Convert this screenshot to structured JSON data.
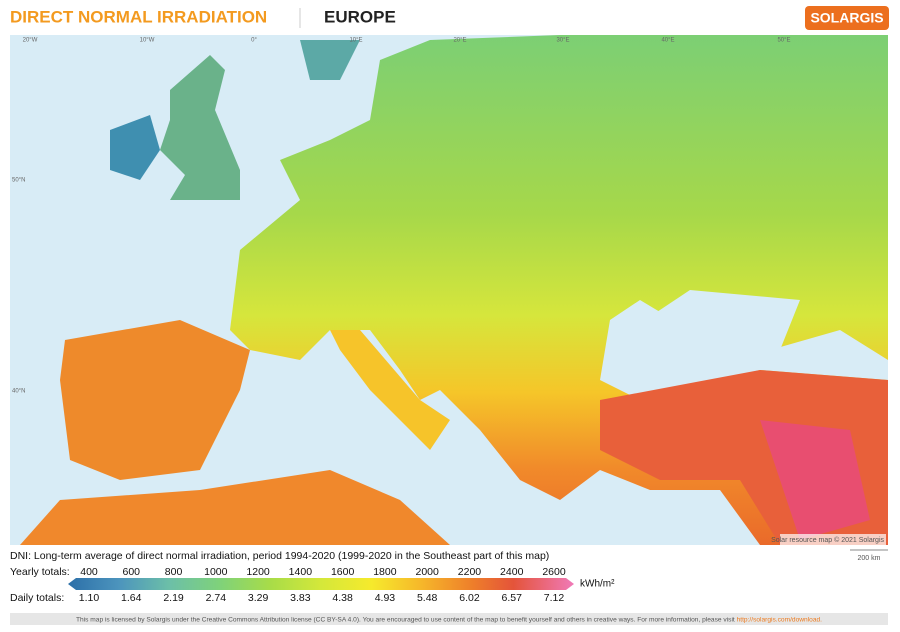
{
  "header": {
    "title": "DIRECT NORMAL IRRADIATION",
    "region": "EUROPE",
    "brand": "SOLARGIS"
  },
  "map": {
    "lon_labels": [
      "20°W",
      "10°W",
      "0°",
      "10°E",
      "20°E",
      "30°E",
      "40°E",
      "50°E"
    ],
    "lat_labels": [
      "50°N",
      "40°N"
    ],
    "credit": "Solar resource map © 2021 Solargis",
    "scale": "200 km"
  },
  "legend": {
    "description": "DNI: Long-term average of direct normal irradiation, period 1994-2020 (1999-2020 in the Southeast part of this map)",
    "yearly_label": "Yearly totals:",
    "yearly": [
      400,
      600,
      800,
      1000,
      1200,
      1400,
      1600,
      1800,
      2000,
      2200,
      2400,
      2600
    ],
    "unit": "kWh/m²",
    "daily_label": "Daily totals:",
    "daily": [
      "1.10",
      "1.64",
      "2.19",
      "2.74",
      "3.29",
      "3.83",
      "4.38",
      "4.93",
      "5.48",
      "6.02",
      "6.57",
      "7.12"
    ]
  },
  "footer": {
    "text": "This map is licensed by Solargis under the Creative Commons Attribution license (CC BY-SA 4.0). You are encouraged to use content of the map to benefit yourself and others in creative ways. For more information, please visit",
    "link": "http://solargis.com/download."
  }
}
